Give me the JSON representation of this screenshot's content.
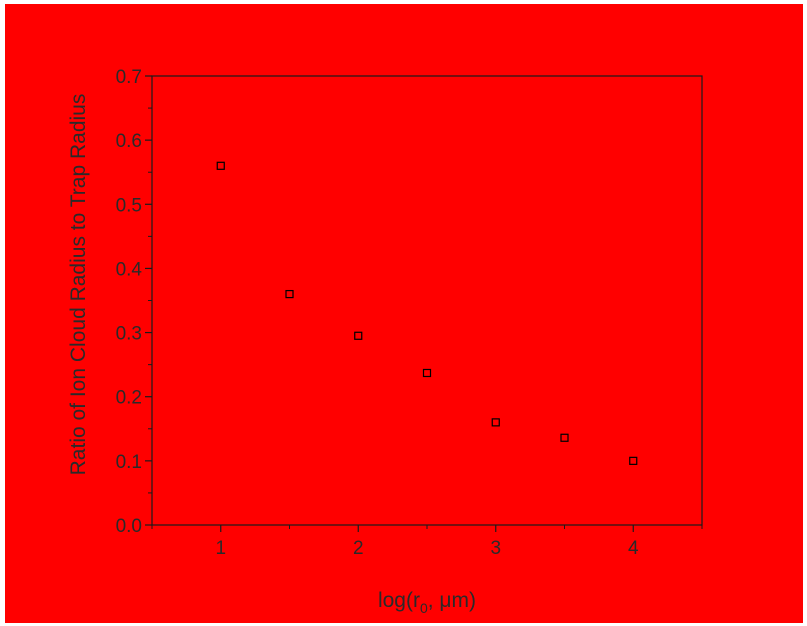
{
  "colors": {
    "background": "#ff0000",
    "axis": "#1a1a1a",
    "text": "#2a2a2a",
    "marker": "#000000"
  },
  "chart_data": {
    "type": "scatter",
    "title": "",
    "xlabel": "log(r0, μm)",
    "xlabel_parts": {
      "pre": "log(r",
      "sub": "0",
      "post": ", μm)"
    },
    "ylabel": "Ratio of Ion Cloud Radius to Trap Radius",
    "xlim": [
      0.5,
      4.5
    ],
    "ylim": [
      0.0,
      0.7
    ],
    "x_ticks": [
      1,
      2,
      3,
      4
    ],
    "x_tick_labels": [
      "1",
      "2",
      "3",
      "4"
    ],
    "y_ticks": [
      0.0,
      0.1,
      0.2,
      0.3,
      0.4,
      0.5,
      0.6,
      0.7
    ],
    "y_tick_labels": [
      "0.0",
      "0.1",
      "0.2",
      "0.3",
      "0.4",
      "0.5",
      "0.6",
      "0.7"
    ],
    "grid": false,
    "marker": "open-square",
    "series": [
      {
        "x": [
          1.0,
          1.5,
          2.0,
          2.5,
          3.0,
          3.5,
          4.0
        ],
        "y": [
          0.56,
          0.36,
          0.295,
          0.237,
          0.16,
          0.136,
          0.1
        ]
      }
    ]
  }
}
